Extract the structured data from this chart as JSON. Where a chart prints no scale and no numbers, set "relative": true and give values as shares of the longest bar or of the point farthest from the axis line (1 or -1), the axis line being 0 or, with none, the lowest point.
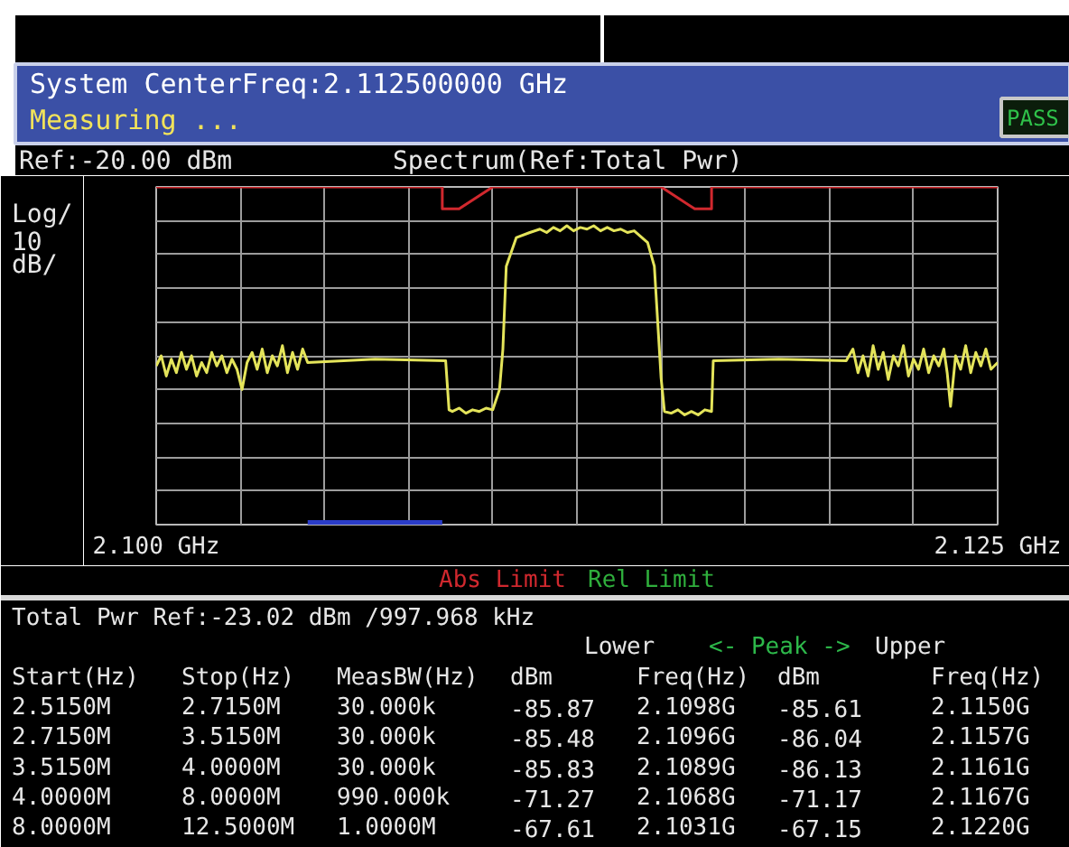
{
  "chart_data": {
    "type": "line",
    "title": "System CenterFreq:2.112500000 GHz",
    "subtitle": "Measuring ...",
    "ylabel": "Log/\n10\ndB/",
    "relative": true,
    "grid": true,
    "xlim": [
      2.1,
      2.125
    ],
    "xticks": [
      {
        "value": 2.1,
        "label": "2.100 GHz"
      },
      {
        "value": 2.1025,
        "label": null
      },
      {
        "value": 2.105,
        "label": null
      },
      {
        "value": 2.1075,
        "label": null
      },
      {
        "value": 2.11,
        "label": null
      },
      {
        "value": 2.1125,
        "label": null
      },
      {
        "value": 2.115,
        "label": null
      },
      {
        "value": 2.1175,
        "label": null
      },
      {
        "value": 2.12,
        "label": null
      },
      {
        "value": 2.1225,
        "label": null
      },
      {
        "value": 2.125,
        "label": "2.125 GHz"
      }
    ],
    "series": [
      {
        "color": "#e4e45a",
        "x": [
          2.1,
          2.10015,
          2.1003,
          2.10045,
          2.1006,
          2.10075,
          2.1009,
          2.10105,
          2.1012,
          2.10135,
          2.1015,
          2.10165,
          2.1018,
          2.10195,
          2.1021,
          2.10225,
          2.1024,
          2.10255,
          2.1027,
          2.10285,
          2.103,
          2.10315,
          2.1033,
          2.10345,
          2.1036,
          2.10375,
          2.1039,
          2.10405,
          2.1042,
          2.10435,
          2.1045,
          2.1065,
          2.1086,
          2.1087,
          2.1088,
          2.109,
          2.1092,
          2.1094,
          2.1096,
          2.1098,
          2.11,
          2.1102,
          2.1103,
          2.1104,
          2.1107,
          2.1111,
          2.1114,
          2.1116,
          2.1118,
          2.112,
          2.1122,
          2.1124,
          2.1126,
          2.1128,
          2.113,
          2.1132,
          2.1134,
          2.1136,
          2.1138,
          2.114,
          2.1142,
          2.1146,
          2.1148,
          2.1149,
          2.115,
          2.1151,
          2.1153,
          2.1155,
          2.1157,
          2.1159,
          2.1161,
          2.1163,
          2.1165,
          2.11655,
          2.1185,
          2.1205,
          2.1207,
          2.12085,
          2.121,
          2.12115,
          2.1213,
          2.12145,
          2.1216,
          2.12175,
          2.1219,
          2.12205,
          2.1222,
          2.12235,
          2.1225,
          2.12265,
          2.1228,
          2.12295,
          2.1231,
          2.12325,
          2.1234,
          2.1235,
          2.1236,
          2.12375,
          2.1239,
          2.12405,
          2.1242,
          2.12435,
          2.1245,
          2.12465,
          2.1248,
          2.125
        ],
        "values": [
          0.47,
          0.5,
          0.44,
          0.49,
          0.45,
          0.51,
          0.46,
          0.5,
          0.44,
          0.48,
          0.45,
          0.51,
          0.47,
          0.5,
          0.45,
          0.49,
          0.46,
          0.4,
          0.48,
          0.51,
          0.46,
          0.52,
          0.45,
          0.5,
          0.47,
          0.53,
          0.45,
          0.51,
          0.46,
          0.52,
          0.48,
          0.49,
          0.485,
          0.34,
          0.335,
          0.345,
          0.33,
          0.34,
          0.335,
          0.345,
          0.34,
          0.4,
          0.52,
          0.765,
          0.85,
          0.865,
          0.875,
          0.865,
          0.88,
          0.87,
          0.885,
          0.87,
          0.88,
          0.875,
          0.885,
          0.87,
          0.88,
          0.87,
          0.875,
          0.865,
          0.87,
          0.835,
          0.765,
          0.6,
          0.435,
          0.335,
          0.33,
          0.34,
          0.325,
          0.335,
          0.325,
          0.34,
          0.335,
          0.485,
          0.49,
          0.485,
          0.52,
          0.45,
          0.5,
          0.44,
          0.53,
          0.46,
          0.51,
          0.43,
          0.5,
          0.47,
          0.53,
          0.44,
          0.49,
          0.46,
          0.52,
          0.45,
          0.5,
          0.47,
          0.52,
          0.45,
          0.35,
          0.5,
          0.46,
          0.53,
          0.45,
          0.51,
          0.47,
          0.52,
          0.46,
          0.48
        ]
      },
      {
        "name": "Abs Limit",
        "color": "#d0282e",
        "x": [
          2.1,
          2.1085,
          2.1085,
          2.109,
          2.11,
          2.115,
          2.116,
          2.1165,
          2.1165,
          2.125
        ],
        "values": [
          1,
          1,
          0.935,
          0.935,
          1,
          1,
          0.935,
          0.935,
          1,
          1
        ]
      },
      {
        "name": "Rel Limit",
        "color": "#2fae3c"
      },
      {
        "color": "#2a3cc8",
        "x": [
          2.1045,
          2.1085
        ],
        "values": [
          0,
          0
        ]
      }
    ],
    "annotations": [
      "PASS",
      "Ref:-20.00 dBm",
      "Spectrum(Ref:Total Pwr)",
      "Total Pwr Ref:-23.02 dBm /997.968 kHz",
      "Lower",
      "<- Peak ->",
      "Upper",
      "Start(Hz)",
      "Stop(Hz)",
      "MeasBW(Hz)",
      "dBm",
      "Freq(Hz)",
      "dBm",
      "Freq(Hz)",
      "2.5150M",
      "2.7150M",
      "30.000k",
      "-85.87",
      "2.1098G",
      "-85.61",
      "2.1150G",
      "2.7150M",
      "3.5150M",
      "30.000k",
      "-85.48",
      "2.1096G",
      "-86.04",
      "2.1157G",
      "3.5150M",
      "4.0000M",
      "30.000k",
      "-85.83",
      "2.1089G",
      "-86.13",
      "2.1161G",
      "4.0000M",
      "8.0000M",
      "990.000k",
      "-71.27",
      "2.1068G",
      "-71.17",
      "2.1167G",
      "8.0000M",
      "12.5000M",
      "1.0000M",
      "-67.61",
      "2.1031G",
      "-67.15",
      "2.1220G"
    ]
  }
}
